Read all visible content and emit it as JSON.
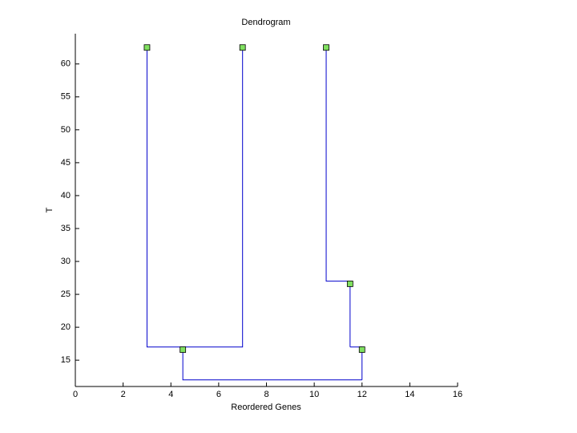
{
  "chart_data": {
    "type": "dendrogram",
    "title": "Dendrogram",
    "x_label": "Reordered Genes",
    "y_label": "T",
    "xlim": [
      0,
      16
    ],
    "xticks": [
      0,
      2,
      4,
      6,
      8,
      10,
      12,
      14,
      16
    ],
    "ylim": [
      11,
      64.6
    ],
    "yticks": [
      15,
      20,
      25,
      30,
      35,
      40,
      45,
      50,
      55,
      60
    ],
    "line_color": "#0000cc",
    "links": [
      {
        "x": [
          3,
          3,
          7,
          7
        ],
        "y": [
          62.5,
          17,
          17,
          62.5
        ]
      },
      {
        "x": [
          10.5,
          10.5,
          11.5,
          11.5
        ],
        "y": [
          62.5,
          27,
          27,
          17
        ]
      },
      {
        "x": [
          11.5,
          12,
          12
        ],
        "y": [
          17,
          17,
          12
        ]
      },
      {
        "x": [
          4.5,
          4.5,
          12
        ],
        "y": [
          17,
          12,
          12
        ]
      }
    ],
    "markers": {
      "color": "#80e060",
      "x": [
        3,
        7,
        10.5,
        4.5,
        11.5,
        12
      ],
      "y": [
        62.5,
        62.5,
        62.5,
        16.6,
        26.6,
        16.6
      ]
    }
  }
}
